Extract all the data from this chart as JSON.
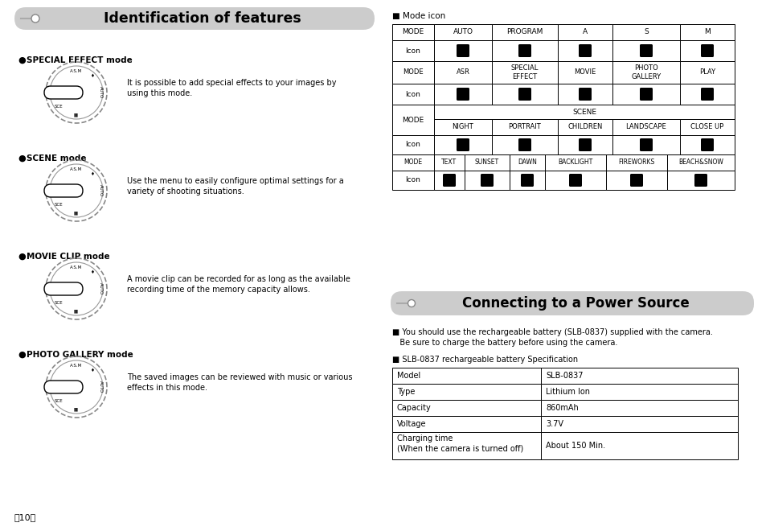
{
  "bg_color": "#ffffff",
  "title1": "Identification of features",
  "title2": "Connecting to a Power Source",
  "title_bg": "#cccccc",
  "sections": [
    {
      "bullet": "SPECIAL EFFECT mode",
      "text": "It is possible to add special effects to your images by\nusing this mode."
    },
    {
      "bullet": "SCENE mode",
      "text": "Use the menu to easily configure optimal settings for a\nvariety of shooting situations."
    },
    {
      "bullet": "MOVIE CLIP mode",
      "text": "A movie clip can be recorded for as long as the available\nrecording time of the memory capacity allows."
    },
    {
      "bullet": "PHOTO GALLERY mode",
      "text": "The saved images can be reviewed with music or various\neffects in this mode."
    }
  ],
  "mode_icon_label": "■ Mode icon",
  "table1_headers": [
    "MODE",
    "AUTO",
    "PROGRAM",
    "A",
    "S",
    "M"
  ],
  "table2_headers": [
    "MODE",
    "ASR",
    "SPECIAL\nEFFECT",
    "MOVIE",
    "PHOTO\nGALLERY",
    "PLAY"
  ],
  "scene_subs": [
    "NIGHT",
    "PORTRAIT",
    "CHILDREN",
    "LANDSCAPE",
    "CLOSE UP"
  ],
  "table4_headers": [
    "MODE",
    "TEXT",
    "SUNSET",
    "DAWN",
    "BACKLIGHT",
    "FIREWORKS",
    "BEACH&SNOW"
  ],
  "connect_note1_line1": "■ You should use the rechargeable battery (SLB-0837) supplied with the camera.",
  "connect_note1_line2": "   Be sure to charge the battery before using the camera.",
  "connect_note2": "■ SLB-0837 rechargeable battery Specification",
  "battery_rows": [
    [
      "Model",
      "SLB-0837"
    ],
    [
      "Type",
      "Lithium Ion"
    ],
    [
      "Capacity",
      "860mAh"
    ],
    [
      "Voltage",
      "3.7V"
    ],
    [
      "Charging time\n(When the camera is turned off)",
      "About 150 Min."
    ]
  ],
  "page_num": "〈10〉"
}
